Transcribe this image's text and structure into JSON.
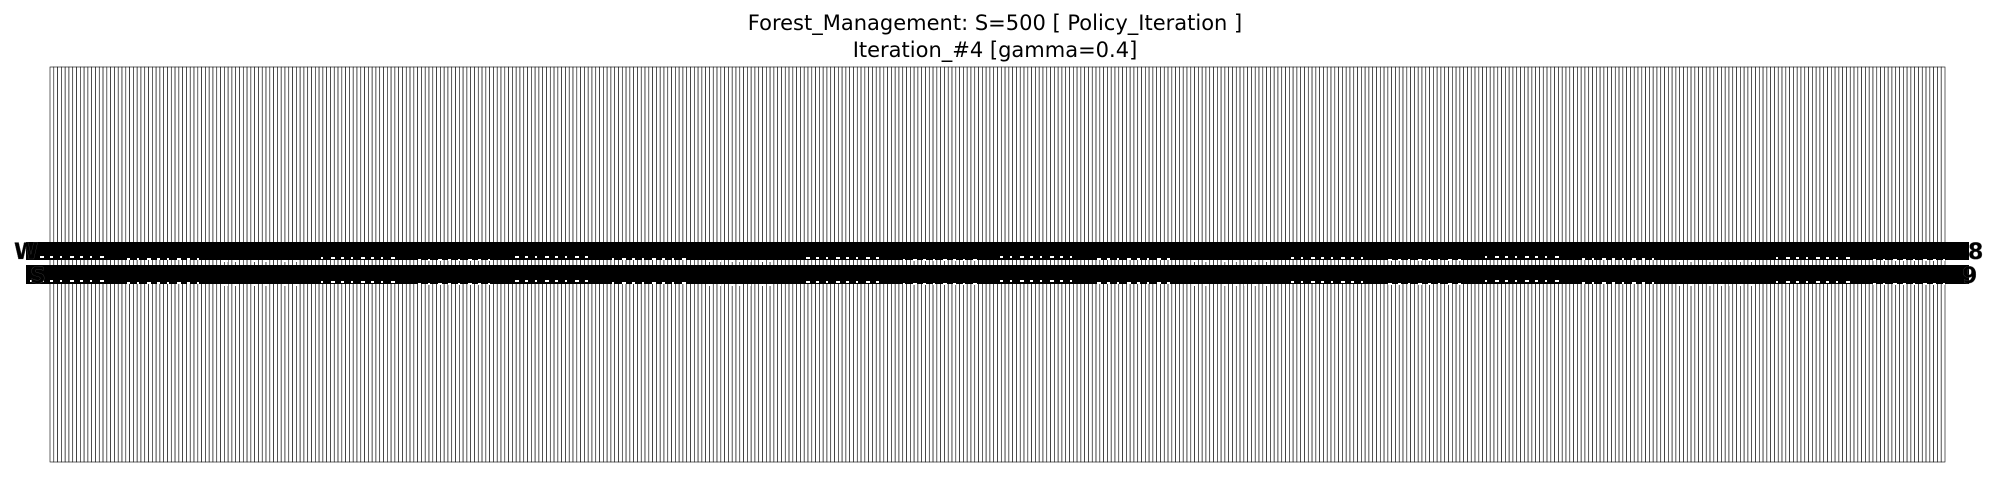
{
  "figure": {
    "title_line1": "Forest_Management: S=500 [ Policy_Iteration ]",
    "title_line2": "Iteration_#4 [gamma=0.4]"
  },
  "grid": {
    "states": 500,
    "cell_fill": "#ffffff",
    "line_color": "#000000",
    "policy_left_label": "W",
    "value_right_label": "8",
    "state_left_label": "S",
    "state_right_label": "9"
  }
}
